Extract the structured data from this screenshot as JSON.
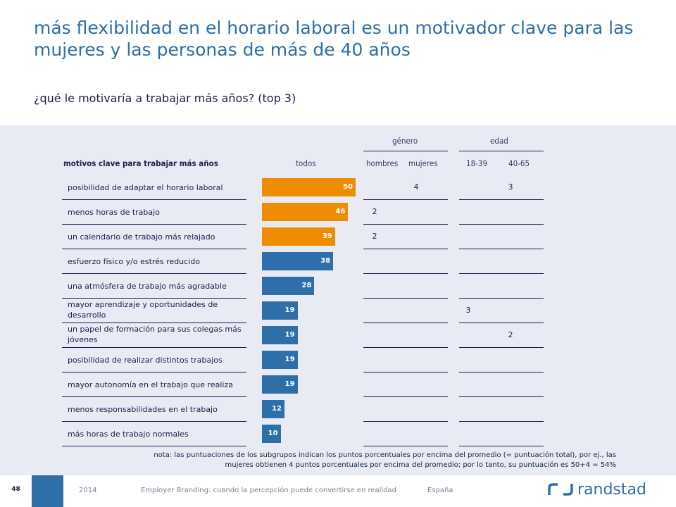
{
  "title": "más flexibilidad en el horario laboral es un motivador clave para las mujeres y las personas de más de 40 años",
  "subtitle": "¿qué le motivaría a trabajar más años? (top 3)",
  "headers": {
    "row_label": "motivos clave para trabajar más años",
    "todos": "todos",
    "genero": "género",
    "edad": "edad",
    "hombres": "hombres",
    "mujeres": "mujeres",
    "age1": "18-39",
    "age2": "40-65"
  },
  "chart_data": {
    "type": "bar",
    "categories": [
      "posibilidad de adaptar el horario laboral",
      "menos horas de trabajo",
      "un calendario de trabajo más relajado",
      "esfuerzo físico y/o estrés reducido",
      "una atmósfera de trabajo más agradable",
      "mayor aprendizaje y oportunidades de desarrollo",
      "un papel de formación para sus colegas más jóvenes",
      "posibilidad de realizar distintos trabajos",
      "mayor autonomía en el trabajo que realiza",
      "menos responsabilidades en el trabajo",
      "más horas de trabajo normales"
    ],
    "values": [
      50,
      46,
      39,
      38,
      28,
      19,
      19,
      19,
      19,
      12,
      10
    ],
    "bar_colors": [
      "#ef8c00",
      "#ef8c00",
      "#ef8c00",
      "#2d6fa8",
      "#2d6fa8",
      "#2d6fa8",
      "#2d6fa8",
      "#2d6fa8",
      "#2d6fa8",
      "#2d6fa8",
      "#2d6fa8"
    ],
    "subgroups": {
      "hombres": [
        "",
        "2",
        "2",
        "",
        "",
        "",
        "",
        "",
        "",
        "",
        ""
      ],
      "mujeres": [
        "4",
        "",
        "",
        "",
        "",
        "",
        "",
        "",
        "",
        "",
        ""
      ],
      "18-39": [
        "",
        "",
        "",
        "",
        "",
        "3",
        "",
        "",
        "",
        "",
        ""
      ],
      "40-65": [
        "3",
        "",
        "",
        "",
        "",
        "",
        "2",
        "",
        "",
        "",
        ""
      ]
    },
    "xlim": [
      0,
      50
    ]
  },
  "note": "nota: las puntuaciones de los subgrupos indican los puntos porcentuales por encima del promedio (= puntuación total), por ej., las mujeres obtienen 4 puntos porcentuales por encima del promedio; por lo tanto, su puntuación es 50+4 = 54%",
  "footer": {
    "page": "48",
    "year": "2014",
    "doc": "Employer Branding: cuando la percepción puede convertirse en realidad",
    "country": "España",
    "brand": "randstad"
  },
  "colors": {
    "orange": "#ef8c00",
    "blue": "#2d6fa8",
    "panel": "#e8ebf4"
  }
}
